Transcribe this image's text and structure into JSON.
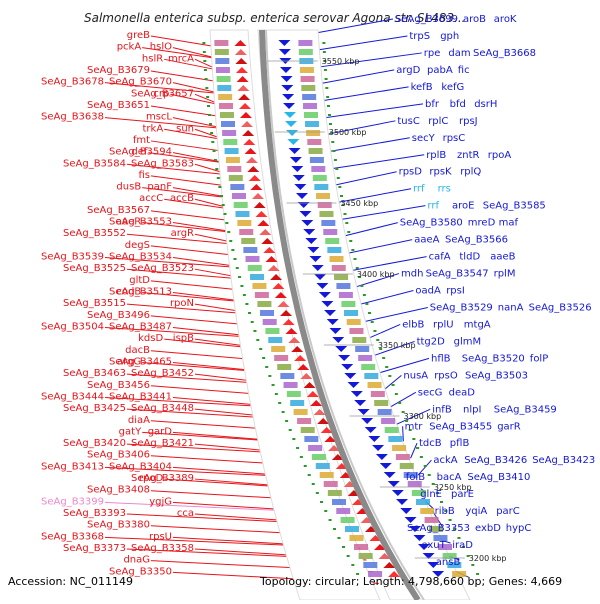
{
  "title": "Salmonella enterica subsp. enterica serovar Agona str. SL483...",
  "footer": {
    "accession": "Accession: NC_011149",
    "topology": "Topology: circular; Length: 4,798,660 bp; Genes: 4,669"
  },
  "colors": {
    "left_gene": "#e8141a",
    "right_gene": "#1418d8",
    "rna_gene": "#26b6e8",
    "pseudo_gene": "#ee88cc",
    "backbone": "#808080"
  },
  "scale_labels": [
    {
      "text": "3550 kbp"
    },
    {
      "text": "3500 kbp"
    },
    {
      "text": "3450 kbp"
    },
    {
      "text": "3400 kbp"
    },
    {
      "text": "3350 kbp"
    },
    {
      "text": "3300 kbp"
    },
    {
      "text": "3250 kbp"
    },
    {
      "text": "3200 kbp"
    }
  ],
  "left_labels": [
    "greB",
    "pckA",
    "hslO",
    "hslR",
    "mrcA",
    "SeAg_B3679",
    "SeAg_B3678",
    "SeAg_B3670",
    "crp",
    "SeAg_B3657",
    "SeAg_B3651",
    "SeAg_B3638",
    "mscL",
    "trkA",
    "sun",
    "fmt",
    "def",
    "SeAg_B3594",
    "SeAg_B3584",
    "SeAg_B3583",
    "fis",
    "dusB",
    "panF",
    "accC",
    "accB",
    "SeAg_B3567",
    "aaeR",
    "SeAg_B3553",
    "SeAg_B3552",
    "argR",
    "degS",
    "SeAg_B3539",
    "SeAg_B3534",
    "SeAg_B3525",
    "SeAg_B3523",
    "gltD",
    "codB",
    "SeAg_B3513",
    "SeAg_B3515",
    "rpoN",
    "SeAg_B3496",
    "SeAg_B3504",
    "SeAg_B3487",
    "kdsD",
    "ispB",
    "dacB",
    "argG",
    "SeAg_B3465",
    "SeAg_B3463",
    "SeAg_B3452",
    "SeAg_B3456",
    "SeAg_B3444",
    "SeAg_B3441",
    "SeAg_B3425",
    "SeAg_B3448",
    "diaA",
    "gatY",
    "garD",
    "SeAg_B3420",
    "SeAg_B3421",
    "SeAg_B3406",
    "SeAg_B3413",
    "SeAg_B3404",
    "rpoD",
    "SeAg_B3389",
    "SeAg_B3408",
    "SeAg_B3399",
    "ygjG",
    "SeAg_B3393",
    "cca",
    "SeAg_B3380",
    "SeAg_B3368",
    "rpsU",
    "SeAg_B3373",
    "SeAg_B3358",
    "dnaG",
    "SeAg_B3350"
  ],
  "right_labels": [
    "SeAg_B3699",
    "aroB",
    "aroK",
    "trpS",
    "gph",
    "rpe",
    "dam",
    "SeAg_B3668",
    "argD",
    "pabA",
    "fic",
    "kefB",
    "kefG",
    "bfr",
    "bfd",
    "dsrH",
    "tusC",
    "rplC",
    "rpsJ",
    "secY",
    "rpsC",
    "rplB",
    "zntR",
    "rpoA",
    "rpsD",
    "rpsK",
    "rplQ",
    "rrf",
    "rrs",
    "rrf",
    "aroE",
    "SeAg_B3585",
    "SeAg_B3580",
    "mreD",
    "maf",
    "aaeA",
    "SeAg_B3566",
    "cafA",
    "tldD",
    "aaeB",
    "mdh",
    "SeAg_B3547",
    "rplM",
    "oadA",
    "rpsI",
    "SeAg_B3529",
    "nanA",
    "SeAg_B3526",
    "elbB",
    "rplU",
    "mtgA",
    "ttg2D",
    "glmM",
    "hflB",
    "SeAg_B3520",
    "folP",
    "nusA",
    "rpsO",
    "SeAg_B3503",
    "secG",
    "deaD",
    "infB",
    "nlpI",
    "SeAg_B3459",
    "mtr",
    "SeAg_B3455",
    "garR",
    "tdcB",
    "pflB",
    "ackA",
    "SeAg_B3426",
    "SeAg_B3423",
    "folB",
    "bacA",
    "SeAg_B3410",
    "glnE",
    "parE",
    "ribB",
    "yqiA",
    "parC",
    "SeAg_B3353",
    "exbD",
    "hypC",
    "exuT",
    "iraD",
    "ansB"
  ]
}
